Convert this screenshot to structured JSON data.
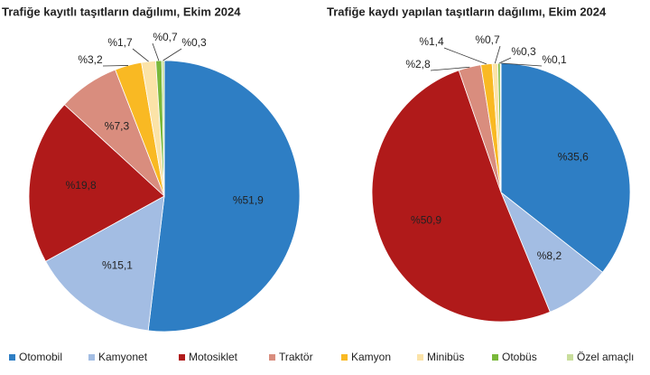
{
  "chart_data": [
    {
      "type": "pie",
      "title": "Trafiğe kayıtlı taşıtların dağılımı, Ekim 2024",
      "values": [
        51.9,
        15.1,
        19.8,
        7.3,
        3.2,
        1.7,
        0.7,
        0.3
      ],
      "value_labels": [
        "%51,9",
        "%15,1",
        "%19,8",
        "%7,3",
        "%3,2",
        "%1,7",
        "%0,7",
        "%0,3"
      ]
    },
    {
      "type": "pie",
      "title": "Trafiğe kaydı yapılan taşıtların dağılımı, Ekim 2024",
      "values": [
        35.6,
        8.2,
        50.9,
        2.8,
        1.4,
        0.7,
        0.3,
        0.1
      ],
      "value_labels": [
        "%35,6",
        "%8,2",
        "%50,9",
        "%2,8",
        "%1,4",
        "%0,7",
        "%0,3",
        "%0,1"
      ]
    }
  ],
  "legend": {
    "categories": [
      "Otomobil",
      "Kamyonet",
      "Motosiklet",
      "Traktör",
      "Kamyon",
      "Minibüs",
      "Otobüs",
      "Özel amaçlı"
    ],
    "colors": [
      "#2e7ec4",
      "#a3bde3",
      "#b01a1a",
      "#d98d7e",
      "#f9b923",
      "#fbe3a8",
      "#79b83a",
      "#c9de9c"
    ]
  }
}
